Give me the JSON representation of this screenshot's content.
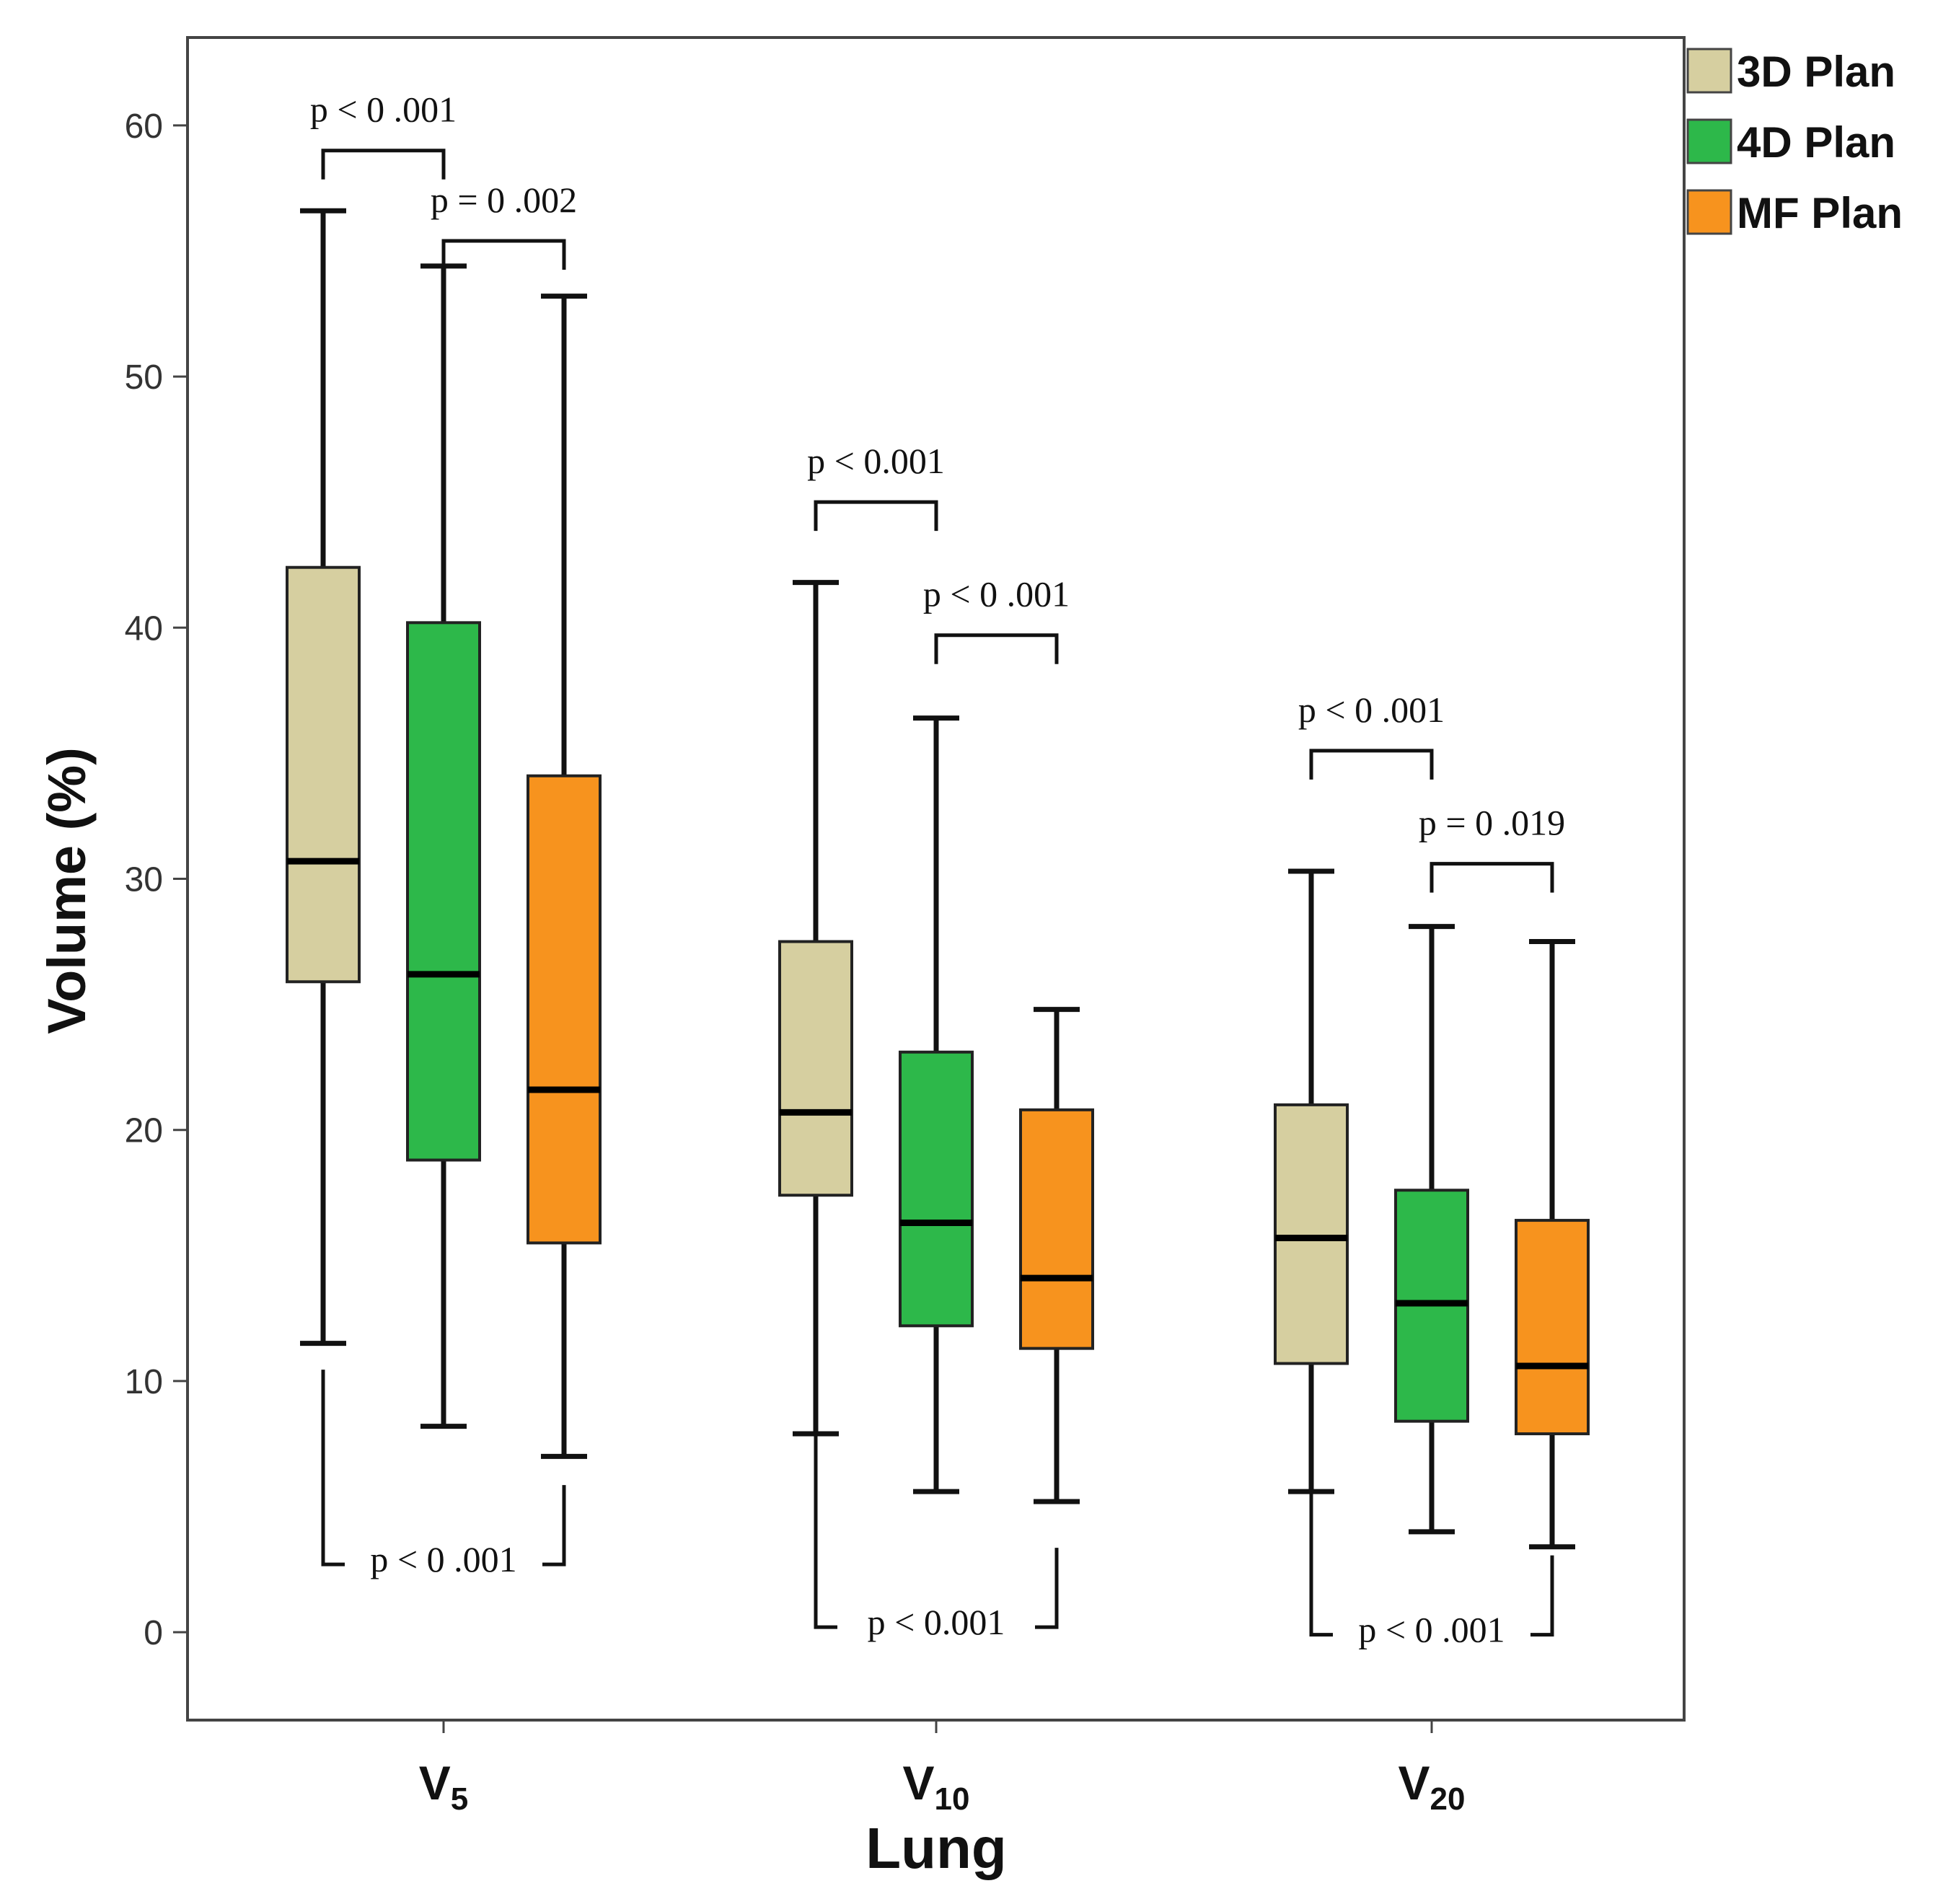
{
  "chart_data": {
    "type": "boxplot",
    "xlabel": "Lung",
    "ylabel": "Volume (%)",
    "ylim": [
      -3.5,
      63.5
    ],
    "yticks": [
      0,
      10,
      20,
      30,
      40,
      50,
      60
    ],
    "ytick_labels": [
      "0",
      "10",
      "20",
      "30",
      "40",
      "50",
      "60"
    ],
    "categories": [
      {
        "main": "V",
        "sub": "5"
      },
      {
        "main": "V",
        "sub": "10"
      },
      {
        "main": "V",
        "sub": "20"
      }
    ],
    "series": [
      {
        "name": "3D Plan",
        "color": "#d6cfa0",
        "boxes": [
          {
            "min": 11.5,
            "q1": 25.9,
            "median": 30.7,
            "q3": 42.4,
            "max": 56.6
          },
          {
            "min": 7.9,
            "q1": 17.4,
            "median": 20.7,
            "q3": 27.5,
            "max": 41.8
          },
          {
            "min": 5.6,
            "q1": 10.7,
            "median": 15.7,
            "q3": 21.0,
            "max": 30.3
          }
        ]
      },
      {
        "name": "4D Plan",
        "color": "#2db84a",
        "boxes": [
          {
            "min": 8.2,
            "q1": 18.8,
            "median": 26.2,
            "q3": 40.2,
            "max": 54.4
          },
          {
            "min": 5.6,
            "q1": 12.2,
            "median": 16.3,
            "q3": 23.1,
            "max": 36.4
          },
          {
            "min": 4.0,
            "q1": 8.4,
            "median": 13.1,
            "q3": 17.6,
            "max": 28.1
          }
        ]
      },
      {
        "name": "MF Plan",
        "color": "#f7931e",
        "boxes": [
          {
            "min": 7.0,
            "q1": 15.5,
            "median": 21.6,
            "q3": 34.1,
            "max": 53.2
          },
          {
            "min": 5.2,
            "q1": 11.3,
            "median": 14.1,
            "q3": 20.8,
            "max": 24.8
          },
          {
            "min": 3.4,
            "q1": 7.9,
            "median": 10.6,
            "q3": 16.4,
            "max": 27.5
          }
        ]
      }
    ],
    "legend": {
      "position": "top-right",
      "entries": [
        "3D Plan",
        "4D Plan",
        "MF Plan"
      ]
    },
    "annotations": [
      {
        "text": "p < 0 .001",
        "category": 0,
        "from": 0,
        "to": 1,
        "side": "top",
        "bracket_y": 59.0,
        "level": "upper"
      },
      {
        "text": "p = 0 .002",
        "category": 0,
        "from": 1,
        "to": 2,
        "side": "top",
        "bracket_y": 55.4,
        "level": "lower"
      },
      {
        "text": "p < 0 .001",
        "category": 0,
        "from": 0,
        "to": 2,
        "side": "bottom",
        "bracket_y": 2.7
      },
      {
        "text": "p < 0.001",
        "category": 1,
        "from": 0,
        "to": 1,
        "side": "top",
        "bracket_y": 45.0,
        "level": "upper"
      },
      {
        "text": "p < 0 .001",
        "category": 1,
        "from": 1,
        "to": 2,
        "side": "top",
        "bracket_y": 39.7,
        "level": "lower"
      },
      {
        "text": "p < 0.001",
        "category": 1,
        "from": 0,
        "to": 2,
        "side": "bottom",
        "bracket_y": 0.2
      },
      {
        "text": "p < 0 .001",
        "category": 2,
        "from": 0,
        "to": 1,
        "side": "top",
        "bracket_y": 35.1,
        "level": "upper"
      },
      {
        "text": "p = 0 .019",
        "category": 2,
        "from": 1,
        "to": 2,
        "side": "top",
        "bracket_y": 30.6,
        "level": "lower"
      },
      {
        "text": "p < 0 .001",
        "category": 2,
        "from": 0,
        "to": 2,
        "side": "bottom",
        "bracket_y": -0.1
      }
    ]
  }
}
